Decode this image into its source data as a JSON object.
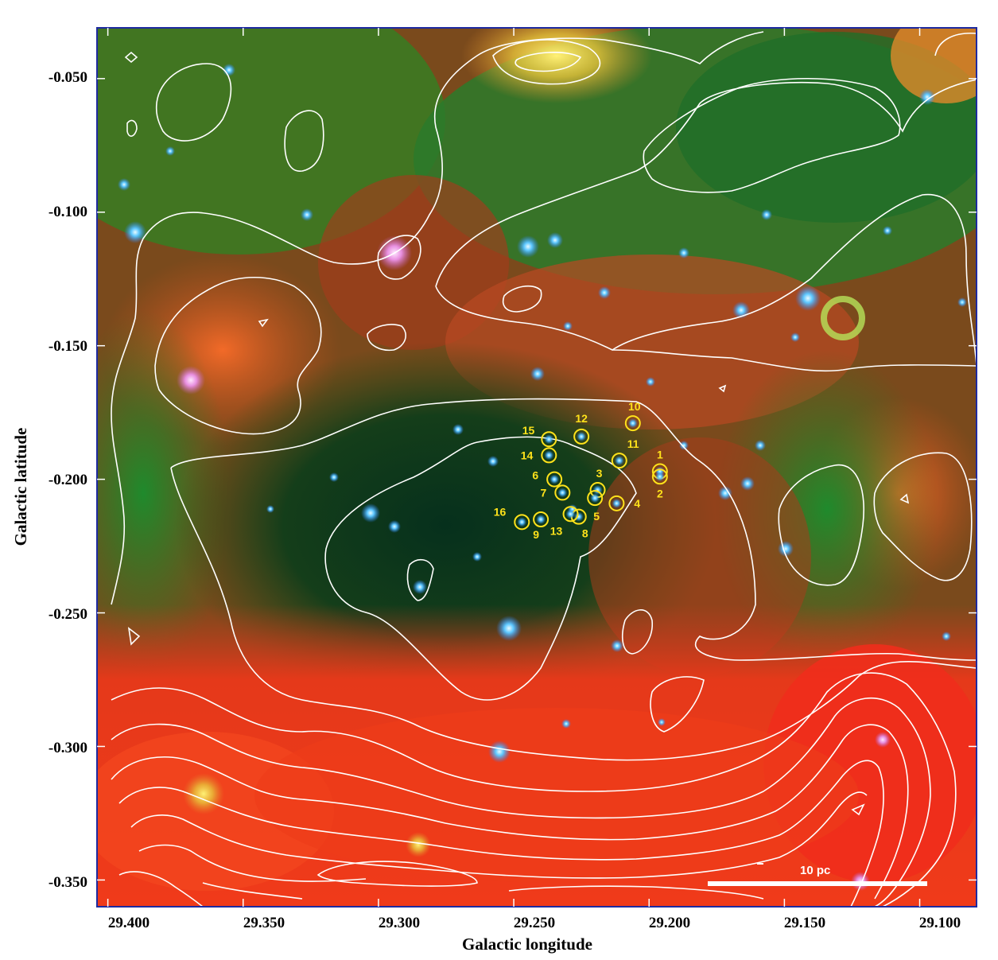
{
  "figure": {
    "x_axis_title": "Galactic longitude",
    "y_axis_title": "Galactic latitude",
    "x_ticks": [
      "29.400",
      "29.350",
      "29.300",
      "29.250",
      "29.200",
      "29.150",
      "29.100"
    ],
    "y_ticks": [
      "-0.050",
      "-0.100",
      "-0.150",
      "-0.200",
      "-0.250",
      "-0.300",
      "-0.350"
    ],
    "x_tick_values": [
      29.4,
      29.35,
      29.3,
      29.25,
      29.2,
      29.15,
      29.1
    ],
    "y_tick_values": [
      -0.05,
      -0.1,
      -0.15,
      -0.2,
      -0.25,
      -0.3,
      -0.35
    ],
    "x_range": [
      29.404,
      29.079
    ],
    "y_range": [
      -0.031,
      -0.36
    ],
    "scale_bar_label": "10 pc",
    "colors": {
      "markers": "#ffe21a",
      "contours": "#ffffff",
      "frame": "#1e2aa0"
    }
  },
  "stars": [
    {
      "id": "1",
      "l": 29.196,
      "b": -0.197
    },
    {
      "id": "2",
      "l": 29.196,
      "b": -0.199
    },
    {
      "id": "3",
      "l": 29.219,
      "b": -0.204
    },
    {
      "id": "4",
      "l": 29.212,
      "b": -0.209
    },
    {
      "id": "5",
      "l": 29.22,
      "b": -0.207
    },
    {
      "id": "6",
      "l": 29.235,
      "b": -0.2
    },
    {
      "id": "7",
      "l": 29.232,
      "b": -0.205
    },
    {
      "id": "8",
      "l": 29.226,
      "b": -0.214
    },
    {
      "id": "9",
      "l": 29.24,
      "b": -0.215
    },
    {
      "id": "10",
      "l": 29.206,
      "b": -0.179
    },
    {
      "id": "11",
      "l": 29.211,
      "b": -0.193
    },
    {
      "id": "12",
      "l": 29.225,
      "b": -0.184
    },
    {
      "id": "13",
      "l": 29.229,
      "b": -0.213
    },
    {
      "id": "14",
      "l": 29.237,
      "b": -0.191
    },
    {
      "id": "15",
      "l": 29.237,
      "b": -0.185
    },
    {
      "id": "16",
      "l": 29.247,
      "b": -0.216
    }
  ]
}
